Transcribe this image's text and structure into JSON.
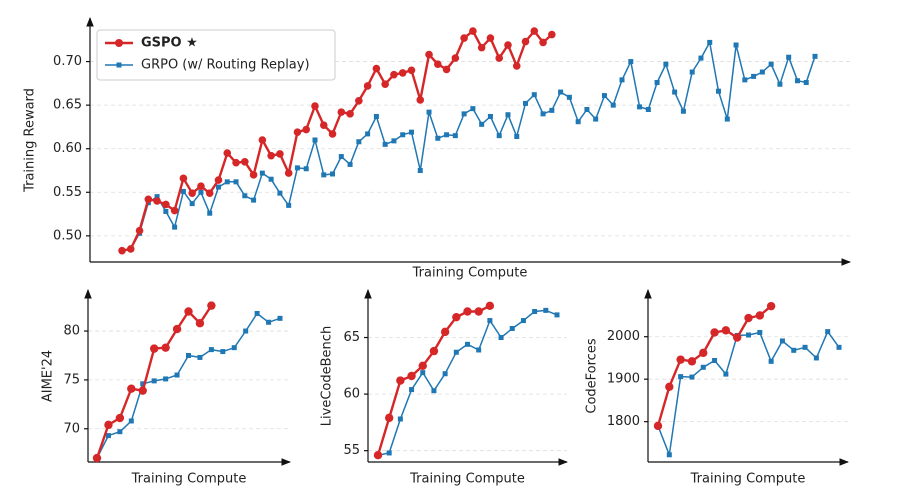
{
  "chart_data": [
    {
      "type": "line",
      "xlabel": "Training Compute",
      "ylabel": "Training Reward",
      "grid": true,
      "legend": "upper left",
      "ylim": [
        0.47,
        0.75
      ],
      "yticks": [
        {
          "value": 0.5,
          "label": "0.50"
        },
        0.55,
        {
          "value": 0.6,
          "label": "0.60"
        },
        0.65,
        {
          "value": 0.7,
          "label": "0.70"
        }
      ],
      "series": [
        {
          "name": "GSPO ★",
          "color": "#d62728",
          "values": [
            0.483,
            0.485,
            0.506,
            0.542,
            0.54,
            0.536,
            0.529,
            0.566,
            0.549,
            0.557,
            0.549,
            0.564,
            0.595,
            0.584,
            0.585,
            0.57,
            0.61,
            0.592,
            0.594,
            0.572,
            0.619,
            0.622,
            0.649,
            0.627,
            0.617,
            0.642,
            0.64,
            0.655,
            0.672,
            0.692,
            0.674,
            0.685,
            0.687,
            0.69,
            0.656,
            0.708,
            0.697,
            0.691,
            0.704,
            0.727,
            0.735,
            0.716,
            0.727,
            0.704,
            0.719,
            0.695,
            0.723,
            0.735,
            0.722,
            0.731,
            null,
            null,
            null,
            null,
            null,
            null,
            null,
            null,
            null,
            null,
            null,
            null,
            null,
            null,
            null,
            null,
            null,
            null,
            null,
            null,
            null,
            null,
            null,
            null,
            null,
            null,
            null,
            null,
            null,
            null
          ]
        },
        {
          "name": "GRPO (w/ Routing Replay)",
          "color": "#1f77b4",
          "values": [
            null,
            0.485,
            0.503,
            0.538,
            0.545,
            0.528,
            0.51,
            0.551,
            0.537,
            0.55,
            0.526,
            0.556,
            0.562,
            0.562,
            0.546,
            0.541,
            0.572,
            0.565,
            0.549,
            0.535,
            0.578,
            0.577,
            0.61,
            0.57,
            0.571,
            0.591,
            0.582,
            0.608,
            0.617,
            0.637,
            0.605,
            0.609,
            0.616,
            0.619,
            0.575,
            0.642,
            0.612,
            0.616,
            0.615,
            0.64,
            0.646,
            0.628,
            0.637,
            0.615,
            0.639,
            0.614,
            0.652,
            0.662,
            0.64,
            0.644,
            0.665,
            0.659,
            0.631,
            0.645,
            0.634,
            0.661,
            0.65,
            0.679,
            0.7,
            0.648,
            0.645,
            0.676,
            0.697,
            0.665,
            0.643,
            0.688,
            0.704,
            0.722,
            0.666,
            0.634,
            0.719,
            0.679,
            0.683,
            0.688,
            0.697,
            0.674,
            0.705,
            0.678,
            0.676,
            0.706
          ]
        }
      ]
    },
    {
      "type": "line",
      "xlabel": "Training Compute",
      "ylabel": "AIME'24",
      "grid": true,
      "ylim": [
        66.6,
        84.2
      ],
      "yticks": [
        70,
        75,
        80
      ],
      "series": [
        {
          "color": "#d62728",
          "values": [
            67.0,
            70.4,
            71.1,
            74.1,
            73.9,
            78.2,
            78.3,
            80.2,
            82.0,
            80.8,
            82.6,
            null,
            null,
            null,
            null,
            null,
            null
          ]
        },
        {
          "color": "#1f77b4",
          "values": [
            67.0,
            69.3,
            69.7,
            70.8,
            74.6,
            74.9,
            75.1,
            75.5,
            77.5,
            77.3,
            78.1,
            77.9,
            78.3,
            80.0,
            81.8,
            80.9,
            81.3
          ]
        }
      ]
    },
    {
      "type": "line",
      "xlabel": "Training Compute",
      "ylabel": "LiveCodeBench",
      "grid": true,
      "ylim": [
        54.0,
        69.2
      ],
      "yticks": [
        55,
        60,
        65
      ],
      "series": [
        {
          "color": "#d62728",
          "values": [
            54.6,
            57.9,
            61.2,
            61.6,
            62.5,
            63.8,
            65.5,
            66.8,
            67.3,
            67.3,
            67.8,
            null,
            null,
            null,
            null,
            null,
            null
          ]
        },
        {
          "color": "#1f77b4",
          "values": [
            54.6,
            54.8,
            57.8,
            60.4,
            61.9,
            60.3,
            61.8,
            63.7,
            64.4,
            63.9,
            66.5,
            65.0,
            65.8,
            66.5,
            67.3,
            67.4,
            67.0
          ]
        }
      ]
    },
    {
      "type": "line",
      "xlabel": "Training Compute",
      "ylabel": "CodeForces",
      "grid": true,
      "ylim": [
        1705,
        2110
      ],
      "yticks": [
        1800,
        1900,
        2000
      ],
      "series": [
        {
          "color": "#d62728",
          "values": [
            1790,
            1882,
            1946,
            1942,
            1962,
            2010,
            2015,
            1998,
            2044,
            2050,
            2072,
            null,
            null,
            null,
            null,
            null,
            null
          ]
        },
        {
          "color": "#1f77b4",
          "values": [
            1790,
            1722,
            1906,
            1905,
            1928,
            1944,
            1912,
            2003,
            2004,
            2010,
            1942,
            1990,
            1968,
            1975,
            1950,
            2012,
            1975
          ]
        }
      ]
    }
  ]
}
